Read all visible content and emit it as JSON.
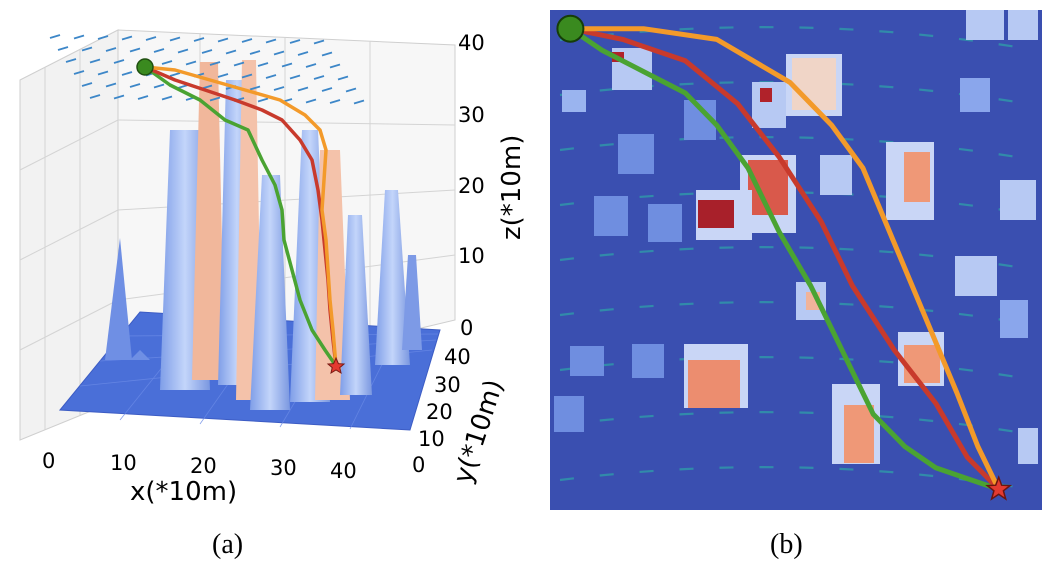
{
  "colors": {
    "terrain_low": "#4a6fd8",
    "building_face": "#a9c3f5",
    "building_top": "#f1a583",
    "map_bg": "#3a4fb0",
    "path_green": "#4aa332",
    "path_red": "#c83a2c",
    "path_orange": "#f39a2a",
    "wind_arrow": "#3d87c8",
    "start_marker": "#3a8a1f",
    "goal_marker": "#e43a30"
  },
  "icons": {
    "start": "green-circle",
    "goal": "red-star",
    "wind": "arrow"
  },
  "captions": {
    "a": "(a)",
    "b": "(b)"
  },
  "chart_data": [
    {
      "type": "scatter",
      "title": "",
      "xlabel": "x(*10m)",
      "ylabel": "y(*10m)",
      "zlabel": "z(*10m)",
      "x_ticks": [
        "0",
        "10",
        "20",
        "30",
        "40"
      ],
      "y_ticks": [
        "0",
        "10",
        "20",
        "30",
        "40"
      ],
      "z_ticks": [
        "0",
        "10",
        "20",
        "30",
        "40"
      ],
      "xlim": [
        0,
        45
      ],
      "ylim": [
        0,
        45
      ],
      "zlim": [
        0,
        40
      ],
      "grid": true,
      "series": [
        {
          "values": [
            [
              5,
              42,
              36
            ],
            [
              12,
              40,
              33
            ],
            [
              18,
              34,
              26
            ],
            [
              22,
              26,
              20
            ],
            [
              25,
              18,
              14
            ],
            [
              28,
              10,
              9
            ],
            [
              31,
              3,
              5
            ]
          ]
        },
        {
          "values": [
            [
              5,
              42,
              36
            ],
            [
              13,
              41,
              34
            ],
            [
              20,
              37,
              30
            ],
            [
              25,
              30,
              24
            ],
            [
              28,
              20,
              16
            ],
            [
              30,
              12,
              10
            ],
            [
              31,
              3,
              5
            ]
          ]
        },
        {
          "values": [
            [
              5,
              42,
              36
            ],
            [
              15,
              42,
              35
            ],
            [
              22,
              40,
              32
            ],
            [
              27,
              36,
              29
            ],
            [
              29,
              26,
              22
            ],
            [
              30,
              14,
              12
            ],
            [
              31,
              3,
              5
            ]
          ]
        }
      ]
    },
    {
      "type": "line",
      "title": "",
      "xlabel": "",
      "ylabel": "",
      "xlim": [
        0,
        45
      ],
      "ylim": [
        0,
        45
      ],
      "grid": false,
      "start": [
        1,
        44
      ],
      "goal": [
        42,
        1
      ],
      "series": [
        {
          "x": [
            1,
            4,
            8,
            12,
            15,
            18,
            21,
            24,
            26,
            28,
            30,
            33,
            36,
            39,
            42
          ],
          "y": [
            44,
            42,
            40,
            38,
            35,
            31,
            25,
            20,
            16,
            12,
            8,
            5,
            3,
            2,
            1
          ]
        },
        {
          "x": [
            1,
            6,
            12,
            17,
            21,
            25,
            28,
            32,
            36,
            39,
            42
          ],
          "y": [
            44,
            43,
            41,
            37,
            32,
            26,
            20,
            14,
            9,
            4,
            1
          ]
        },
        {
          "x": [
            1,
            8,
            15,
            22,
            26,
            29,
            32,
            35,
            38,
            40,
            42
          ],
          "y": [
            44,
            44,
            43,
            39,
            35,
            31,
            24,
            17,
            10,
            5,
            1
          ]
        }
      ]
    }
  ]
}
